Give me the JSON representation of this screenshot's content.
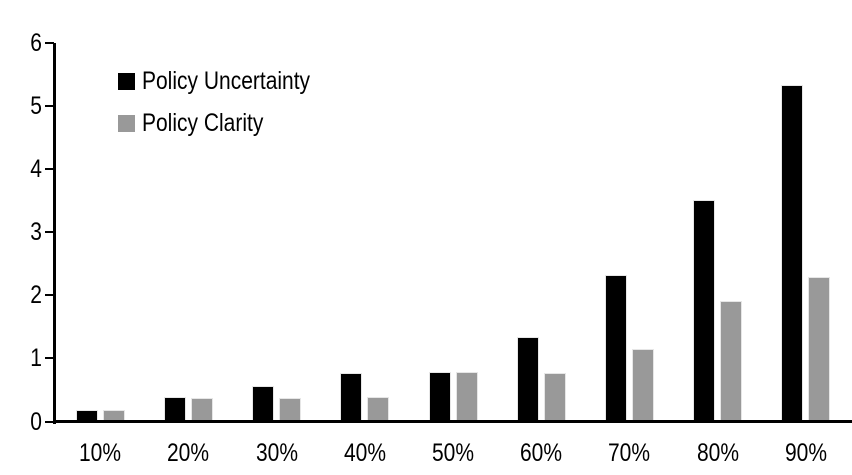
{
  "chart_data": {
    "type": "bar",
    "title": "",
    "xlabel": "",
    "ylabel": "",
    "categories": [
      "10%",
      "20%",
      "30%",
      "40%",
      "50%",
      "60%",
      "70%",
      "80%",
      "90%"
    ],
    "series": [
      {
        "name": "Policy Uncertainty",
        "color": "#000000",
        "values": [
          0.18,
          0.38,
          0.56,
          0.76,
          0.78,
          1.33,
          2.32,
          3.5,
          5.33
        ]
      },
      {
        "name": "Policy Clarity",
        "color": "#999999",
        "values": [
          0.18,
          0.37,
          0.37,
          0.38,
          0.77,
          0.76,
          1.14,
          1.9,
          2.28
        ]
      }
    ],
    "ylim": [
      0,
      6
    ],
    "yticks": [
      0,
      1,
      2,
      3,
      4,
      5,
      6
    ],
    "grid": false,
    "legend_position": "top-left-inside",
    "axis_color": "#000000",
    "background_color": "#ffffff"
  }
}
